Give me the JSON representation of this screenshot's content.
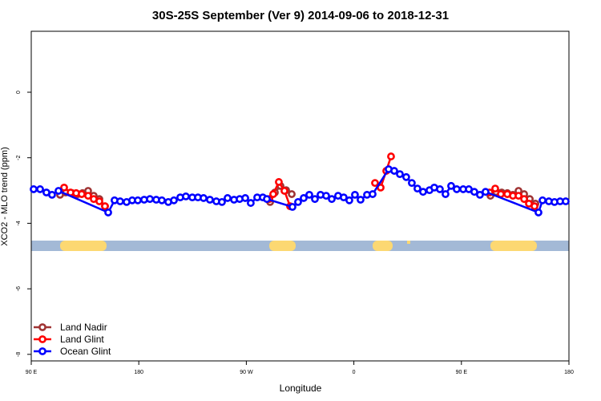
{
  "chart_data": {
    "type": "line",
    "title": "30S-25S September (Ver 9)   2014-09-06 to 2018-12-31",
    "x_label": "Longitude",
    "y_label": "XCO2 - MLO trend (ppm)",
    "xlim": [
      90,
      540
    ],
    "xticks": [
      {
        "value": 90,
        "label": "90 E"
      },
      180,
      {
        "value": 270,
        "label": "90 W"
      },
      {
        "value": 360,
        "label": "0"
      },
      {
        "value": 450,
        "label": "90 E"
      },
      {
        "value": 540,
        "label": "180"
      }
    ],
    "ylim": [
      -8.2,
      1.86
    ],
    "yticks": [
      0,
      -2,
      -4,
      -6,
      -8
    ],
    "legend": "bottom-left",
    "series": [
      {
        "name": "Land Nadir",
        "color": "#a03434",
        "x": [
          114.1,
          118.8,
          124.2,
          128.9,
          132.9,
          137.6,
          142.3,
          147,
          151.7,
          null,
          289.9,
          293.9,
          298.6,
          303.3,
          308,
          null,
          474.3,
          479,
          483.7,
          488.4,
          493.1,
          497.8,
          502.5,
          507.2,
          511.9
        ],
        "values": [
          -3.13,
          -3.06,
          -3.08,
          -3.11,
          -3.08,
          -3.01,
          -3.16,
          -3.26,
          -3.48,
          null,
          -3.35,
          -3.06,
          -2.86,
          -2.99,
          -3.11,
          null,
          -3.16,
          -3.04,
          -3.06,
          -3.08,
          -3.13,
          -3.01,
          -3.11,
          -3.26,
          -3.4
        ]
      },
      {
        "name": "Land Glint",
        "color": "#ff0000",
        "x": [
          117.5,
          122.9,
          127.6,
          132.2,
          137.6,
          142.3,
          147,
          151.7,
          null,
          289.2,
          292.5,
          297.2,
          301.9,
          306.6,
          null,
          377.7,
          382.4,
          387.1,
          391.1,
          null,
          473.6,
          478.3,
          483,
          488.4,
          493.1,
          497.8,
          502.5,
          506.5,
          511.2
        ],
        "values": [
          -2.91,
          -3.06,
          -3.08,
          -3.11,
          -3.16,
          -3.26,
          -3.33,
          -3.48,
          null,
          -3.26,
          -3.11,
          -2.74,
          -3.01,
          -3.48,
          null,
          -2.77,
          -2.91,
          -2.4,
          -1.96,
          null,
          -3.06,
          -2.94,
          -3.11,
          -3.11,
          -3.16,
          -3.16,
          -3.26,
          -3.4,
          -3.48
        ]
      },
      {
        "name": "Ocean Glint",
        "color": "#0000ff",
        "x": [
          92,
          97.4,
          102.7,
          107.4,
          112.8,
          154.4,
          159.7,
          164.4,
          169.8,
          174.5,
          179.2,
          184.5,
          189.3,
          194.6,
          199.3,
          204.7,
          209.4,
          214.7,
          219.4,
          224.8,
          229.5,
          234.2,
          239.5,
          244.9,
          249.6,
          254.3,
          259.7,
          264.4,
          269.1,
          273.7,
          279.1,
          283.8,
          287.2,
          308.6,
          313.3,
          318,
          322.7,
          327.4,
          332.1,
          336.8,
          341.5,
          346.8,
          351.5,
          356.2,
          360.9,
          365.6,
          371,
          375.7,
          389.1,
          393.8,
          398.5,
          403.8,
          408.5,
          413.2,
          417.9,
          423.3,
          427.3,
          432,
          436.7,
          441.4,
          446.1,
          451.5,
          456.2,
          460.8,
          465.5,
          470.2,
          514.5,
          517.9,
          523.2,
          527.9,
          532.6,
          537.3
        ],
        "values": [
          -2.96,
          -2.96,
          -3.06,
          -3.13,
          -3.01,
          -3.67,
          -3.3,
          -3.33,
          -3.35,
          -3.3,
          -3.3,
          -3.28,
          -3.26,
          -3.28,
          -3.3,
          -3.35,
          -3.3,
          -3.21,
          -3.18,
          -3.21,
          -3.21,
          -3.23,
          -3.28,
          -3.33,
          -3.35,
          -3.23,
          -3.28,
          -3.26,
          -3.23,
          -3.38,
          -3.21,
          -3.21,
          -3.26,
          -3.5,
          -3.35,
          -3.23,
          -3.13,
          -3.26,
          -3.13,
          -3.16,
          -3.26,
          -3.16,
          -3.21,
          -3.3,
          -3.13,
          -3.28,
          -3.13,
          -3.11,
          -2.35,
          -2.4,
          -2.5,
          -2.59,
          -2.77,
          -2.94,
          -3.04,
          -2.99,
          -2.91,
          -2.96,
          -3.11,
          -2.86,
          -2.96,
          -2.96,
          -2.96,
          -3.04,
          -3.13,
          -3.04,
          -3.67,
          -3.3,
          -3.33,
          -3.35,
          -3.33,
          -3.33
        ]
      }
    ]
  }
}
